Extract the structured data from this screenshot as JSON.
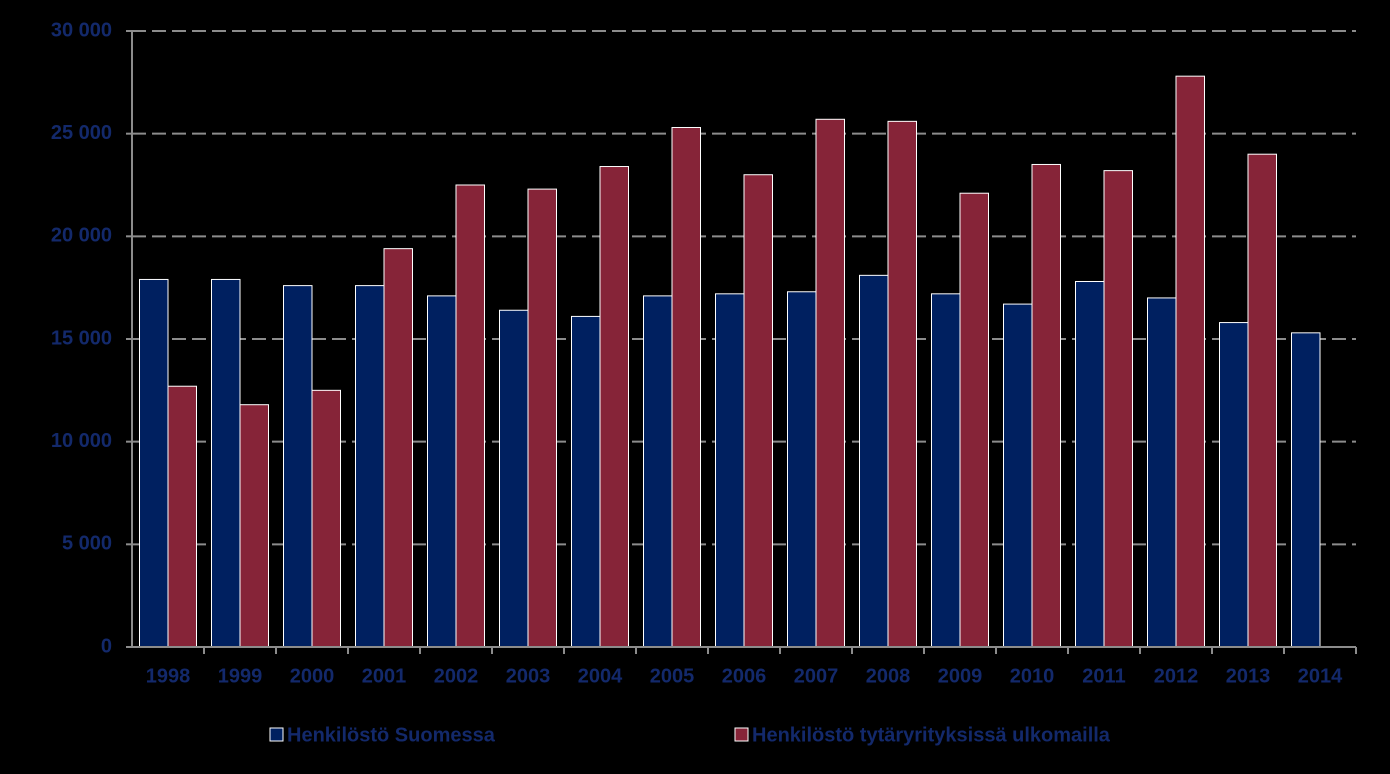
{
  "chart_data": {
    "type": "bar",
    "categories": [
      "1998",
      "1999",
      "2000",
      "2001",
      "2002",
      "2003",
      "2004",
      "2005",
      "2006",
      "2007",
      "2008",
      "2009",
      "2010",
      "2011",
      "2012",
      "2013",
      "2014"
    ],
    "series": [
      {
        "name": "Henkilöstö Suomessa",
        "color": "#002060",
        "values": [
          17900,
          17900,
          17600,
          17600,
          17100,
          16400,
          16100,
          17100,
          17200,
          17300,
          18100,
          17200,
          16700,
          17800,
          17000,
          15800,
          15300
        ]
      },
      {
        "name": "Henkilöstö tytäryrityksissä ulkomailla",
        "color": "#862438",
        "values": [
          12700,
          11800,
          12500,
          19400,
          22500,
          22300,
          23400,
          25300,
          23000,
          25700,
          25600,
          22100,
          23500,
          23200,
          27800,
          24000,
          null
        ]
      }
    ],
    "ylim": [
      0,
      30000
    ],
    "yticks": [
      {
        "value": 0,
        "label": "0"
      },
      {
        "value": 5000,
        "label": "5 000"
      },
      {
        "value": 10000,
        "label": "10 000"
      },
      {
        "value": 15000,
        "label": "15 000"
      },
      {
        "value": 20000,
        "label": "20 000"
      },
      {
        "value": 25000,
        "label": "25 000"
      },
      {
        "value": 30000,
        "label": "30 000"
      }
    ],
    "grid": true,
    "legend": "bottom"
  }
}
